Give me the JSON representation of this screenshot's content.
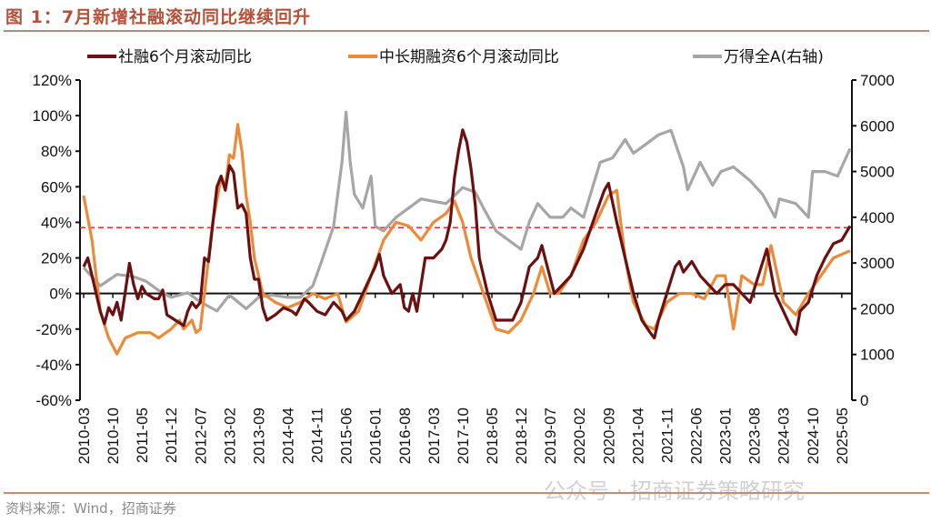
{
  "title": "图 1：7月新增社融滚动同比继续回升",
  "source": "资料来源：Wind，招商证券",
  "watermark": "公众号 · 招商证券策略研究",
  "chart_data": {
    "type": "line",
    "title": "",
    "xlabel": "",
    "ylabel": "",
    "y_left": {
      "min": -60,
      "max": 120,
      "step": 20,
      "ticks": [
        "-60%",
        "-40%",
        "-20%",
        "0%",
        "20%",
        "40%",
        "60%",
        "80%",
        "100%",
        "120%"
      ]
    },
    "y_right": {
      "min": 0,
      "max": 7000,
      "step": 1000,
      "ticks": [
        "0",
        "1000",
        "2000",
        "3000",
        "4000",
        "5000",
        "6000",
        "7000"
      ]
    },
    "x_range": [
      "2010-03",
      "2025-07"
    ],
    "x_ticks": [
      "2010-03",
      "2010-10",
      "2011-05",
      "2011-12",
      "2012-07",
      "2013-02",
      "2013-09",
      "2014-04",
      "2014-11",
      "2015-06",
      "2016-01",
      "2016-08",
      "2017-03",
      "2017-10",
      "2018-05",
      "2018-12",
      "2019-07",
      "2020-02",
      "2020-09",
      "2021-04",
      "2021-11",
      "2022-06",
      "2023-01",
      "2023-08",
      "2024-03",
      "2024-10",
      "2025-05"
    ],
    "reference_line": {
      "value": 37,
      "axis": "left",
      "color": "#e0302a",
      "style": "dashed"
    },
    "legend_position": "top",
    "grid": false,
    "series": [
      {
        "name": "社融6个月滚动同比",
        "axis": "left",
        "color": "#6b0f10",
        "points": [
          [
            "2010-03",
            15
          ],
          [
            "2010-04",
            20
          ],
          [
            "2010-05",
            10
          ],
          [
            "2010-07",
            -10
          ],
          [
            "2010-08",
            -17
          ],
          [
            "2010-09",
            -8
          ],
          [
            "2010-10",
            -12
          ],
          [
            "2010-11",
            -5
          ],
          [
            "2010-12",
            -15
          ],
          [
            "2011-02",
            17
          ],
          [
            "2011-03",
            5
          ],
          [
            "2011-04",
            -3
          ],
          [
            "2011-05",
            4
          ],
          [
            "2011-06",
            0
          ],
          [
            "2011-08",
            -3
          ],
          [
            "2011-09",
            -3
          ],
          [
            "2011-10",
            2
          ],
          [
            "2011-11",
            -12
          ],
          [
            "2012-01",
            -15
          ],
          [
            "2012-03",
            -18
          ],
          [
            "2012-04",
            -10
          ],
          [
            "2012-05",
            -5
          ],
          [
            "2012-06",
            -8
          ],
          [
            "2012-07",
            -5
          ],
          [
            "2012-08",
            20
          ],
          [
            "2012-09",
            18
          ],
          [
            "2012-11",
            60
          ],
          [
            "2012-12",
            66
          ],
          [
            "2013-01",
            58
          ],
          [
            "2013-02",
            72
          ],
          [
            "2013-03",
            68
          ],
          [
            "2013-04",
            48
          ],
          [
            "2013-05",
            50
          ],
          [
            "2013-06",
            45
          ],
          [
            "2013-07",
            20
          ],
          [
            "2013-08",
            8
          ],
          [
            "2013-09",
            8
          ],
          [
            "2013-10",
            -8
          ],
          [
            "2013-11",
            -15
          ],
          [
            "2014-01",
            -12
          ],
          [
            "2014-03",
            -8
          ],
          [
            "2014-05",
            -10
          ],
          [
            "2014-06",
            -12
          ],
          [
            "2014-08",
            -3
          ],
          [
            "2014-09",
            -5
          ],
          [
            "2014-11",
            -10
          ],
          [
            "2015-01",
            -12
          ],
          [
            "2015-03",
            -5
          ],
          [
            "2015-05",
            -10
          ],
          [
            "2015-06",
            -15
          ],
          [
            "2015-08",
            -10
          ],
          [
            "2015-10",
            0
          ],
          [
            "2015-11",
            5
          ],
          [
            "2016-01",
            15
          ],
          [
            "2016-02",
            22
          ],
          [
            "2016-03",
            10
          ],
          [
            "2016-05",
            0
          ],
          [
            "2016-07",
            5
          ],
          [
            "2016-08",
            -8
          ],
          [
            "2016-09",
            -10
          ],
          [
            "2016-10",
            0
          ],
          [
            "2016-11",
            -10
          ],
          [
            "2017-01",
            20
          ],
          [
            "2017-03",
            20
          ],
          [
            "2017-05",
            25
          ],
          [
            "2017-06",
            30
          ],
          [
            "2017-07",
            40
          ],
          [
            "2017-08",
            65
          ],
          [
            "2017-09",
            80
          ],
          [
            "2017-10",
            92
          ],
          [
            "2017-11",
            85
          ],
          [
            "2017-12",
            70
          ],
          [
            "2018-01",
            50
          ],
          [
            "2018-02",
            20
          ],
          [
            "2018-04",
            0
          ],
          [
            "2018-06",
            -15
          ],
          [
            "2018-08",
            -15
          ],
          [
            "2018-10",
            -15
          ],
          [
            "2018-12",
            -5
          ],
          [
            "2019-02",
            15
          ],
          [
            "2019-04",
            20
          ],
          [
            "2019-05",
            27
          ],
          [
            "2019-06",
            18
          ],
          [
            "2019-08",
            0
          ],
          [
            "2019-10",
            5
          ],
          [
            "2019-12",
            10
          ],
          [
            "2020-03",
            25
          ],
          [
            "2020-06",
            45
          ],
          [
            "2020-08",
            58
          ],
          [
            "2020-09",
            62
          ],
          [
            "2020-11",
            40
          ],
          [
            "2021-01",
            20
          ],
          [
            "2021-03",
            0
          ],
          [
            "2021-05",
            -15
          ],
          [
            "2021-07",
            -22
          ],
          [
            "2021-08",
            -25
          ],
          [
            "2021-09",
            -15
          ],
          [
            "2021-11",
            0
          ],
          [
            "2022-01",
            15
          ],
          [
            "2022-02",
            18
          ],
          [
            "2022-03",
            12
          ],
          [
            "2022-04",
            15
          ],
          [
            "2022-05",
            18
          ],
          [
            "2022-07",
            10
          ],
          [
            "2022-09",
            5
          ],
          [
            "2022-11",
            0
          ],
          [
            "2023-01",
            5
          ],
          [
            "2023-03",
            5
          ],
          [
            "2023-05",
            0
          ],
          [
            "2023-07",
            -5
          ],
          [
            "2023-09",
            10
          ],
          [
            "2023-11",
            25
          ],
          [
            "2024-01",
            0
          ],
          [
            "2024-03",
            -10
          ],
          [
            "2024-05",
            -20
          ],
          [
            "2024-06",
            -23
          ],
          [
            "2024-07",
            -10
          ],
          [
            "2024-09",
            -5
          ],
          [
            "2024-11",
            10
          ],
          [
            "2025-01",
            20
          ],
          [
            "2025-03",
            28
          ],
          [
            "2025-05",
            30
          ],
          [
            "2025-07",
            38
          ]
        ]
      },
      {
        "name": "中长期融资6个月滚动同比",
        "axis": "left",
        "color": "#ec8a3a",
        "points": [
          [
            "2010-03",
            55
          ],
          [
            "2010-05",
            30
          ],
          [
            "2010-07",
            -10
          ],
          [
            "2010-09",
            -25
          ],
          [
            "2010-11",
            -34
          ],
          [
            "2011-01",
            -25
          ],
          [
            "2011-04",
            -22
          ],
          [
            "2011-07",
            -22
          ],
          [
            "2011-09",
            -25
          ],
          [
            "2011-12",
            -20
          ],
          [
            "2012-02",
            -15
          ],
          [
            "2012-03",
            -20
          ],
          [
            "2012-05",
            -15
          ],
          [
            "2012-06",
            -22
          ],
          [
            "2012-07",
            -20
          ],
          [
            "2012-08",
            0
          ],
          [
            "2012-10",
            40
          ],
          [
            "2012-12",
            65
          ],
          [
            "2013-01",
            60
          ],
          [
            "2013-02",
            78
          ],
          [
            "2013-03",
            76
          ],
          [
            "2013-04",
            95
          ],
          [
            "2013-05",
            80
          ],
          [
            "2013-06",
            55
          ],
          [
            "2013-07",
            40
          ],
          [
            "2013-08",
            20
          ],
          [
            "2013-10",
            0
          ],
          [
            "2014-01",
            -5
          ],
          [
            "2014-04",
            -8
          ],
          [
            "2014-07",
            -5
          ],
          [
            "2014-10",
            0
          ],
          [
            "2015-01",
            -3
          ],
          [
            "2015-04",
            0
          ],
          [
            "2015-06",
            -16
          ],
          [
            "2015-09",
            -10
          ],
          [
            "2015-12",
            10
          ],
          [
            "2016-03",
            30
          ],
          [
            "2016-06",
            40
          ],
          [
            "2016-09",
            38
          ],
          [
            "2016-12",
            30
          ],
          [
            "2017-03",
            40
          ],
          [
            "2017-06",
            45
          ],
          [
            "2017-08",
            52
          ],
          [
            "2017-10",
            40
          ],
          [
            "2017-12",
            20
          ],
          [
            "2018-03",
            0
          ],
          [
            "2018-06",
            -20
          ],
          [
            "2018-09",
            -22
          ],
          [
            "2018-12",
            -15
          ],
          [
            "2019-03",
            0
          ],
          [
            "2019-05",
            15
          ],
          [
            "2019-07",
            0
          ],
          [
            "2019-09",
            0
          ],
          [
            "2019-12",
            10
          ],
          [
            "2020-03",
            30
          ],
          [
            "2020-06",
            40
          ],
          [
            "2020-09",
            55
          ],
          [
            "2020-11",
            58
          ],
          [
            "2021-01",
            20
          ],
          [
            "2021-03",
            -5
          ],
          [
            "2021-06",
            -18
          ],
          [
            "2021-08",
            -20
          ],
          [
            "2021-11",
            -5
          ],
          [
            "2022-02",
            0
          ],
          [
            "2022-05",
            0
          ],
          [
            "2022-08",
            -3
          ],
          [
            "2022-11",
            10
          ],
          [
            "2023-01",
            10
          ],
          [
            "2023-03",
            -20
          ],
          [
            "2023-05",
            10
          ],
          [
            "2023-08",
            5
          ],
          [
            "2023-10",
            5
          ],
          [
            "2023-12",
            27
          ],
          [
            "2024-03",
            -5
          ],
          [
            "2024-06",
            -12
          ],
          [
            "2024-09",
            0
          ],
          [
            "2024-12",
            10
          ],
          [
            "2025-03",
            20
          ],
          [
            "2025-07",
            24
          ]
        ]
      },
      {
        "name": "万得全A(右轴)",
        "axis": "right",
        "color": "#a6a6a6",
        "points": [
          [
            "2010-03",
            2900
          ],
          [
            "2010-07",
            2500
          ],
          [
            "2010-11",
            2750
          ],
          [
            "2011-03",
            2700
          ],
          [
            "2011-06",
            2600
          ],
          [
            "2011-09",
            2400
          ],
          [
            "2011-12",
            2250
          ],
          [
            "2012-04",
            2350
          ],
          [
            "2012-07",
            2150
          ],
          [
            "2012-11",
            1950
          ],
          [
            "2013-02",
            2300
          ],
          [
            "2013-06",
            2000
          ],
          [
            "2013-09",
            2250
          ],
          [
            "2013-12",
            2300
          ],
          [
            "2014-04",
            2250
          ],
          [
            "2014-07",
            2250
          ],
          [
            "2014-10",
            2500
          ],
          [
            "2014-12",
            3000
          ],
          [
            "2015-03",
            3800
          ],
          [
            "2015-05",
            5200
          ],
          [
            "2015-06",
            6300
          ],
          [
            "2015-07",
            5200
          ],
          [
            "2015-08",
            4500
          ],
          [
            "2015-10",
            4200
          ],
          [
            "2015-12",
            4900
          ],
          [
            "2016-01",
            3800
          ],
          [
            "2016-03",
            3700
          ],
          [
            "2016-06",
            4000
          ],
          [
            "2016-09",
            4200
          ],
          [
            "2016-12",
            4400
          ],
          [
            "2017-03",
            4350
          ],
          [
            "2017-06",
            4300
          ],
          [
            "2017-10",
            4650
          ],
          [
            "2018-01",
            4550
          ],
          [
            "2018-03",
            4200
          ],
          [
            "2018-06",
            3700
          ],
          [
            "2018-09",
            3500
          ],
          [
            "2018-12",
            3300
          ],
          [
            "2019-02",
            3900
          ],
          [
            "2019-04",
            4300
          ],
          [
            "2019-07",
            4000
          ],
          [
            "2019-10",
            4000
          ],
          [
            "2019-12",
            4200
          ],
          [
            "2020-03",
            4000
          ],
          [
            "2020-07",
            5200
          ],
          [
            "2020-10",
            5300
          ],
          [
            "2021-01",
            5700
          ],
          [
            "2021-03",
            5400
          ],
          [
            "2021-06",
            5600
          ],
          [
            "2021-09",
            5800
          ],
          [
            "2021-12",
            5900
          ],
          [
            "2022-03",
            5100
          ],
          [
            "2022-04",
            4600
          ],
          [
            "2022-07",
            5200
          ],
          [
            "2022-10",
            4700
          ],
          [
            "2022-12",
            5000
          ],
          [
            "2023-03",
            5100
          ],
          [
            "2023-07",
            4800
          ],
          [
            "2023-10",
            4500
          ],
          [
            "2024-01",
            4000
          ],
          [
            "2024-02",
            4400
          ],
          [
            "2024-06",
            4300
          ],
          [
            "2024-09",
            4000
          ],
          [
            "2024-10",
            5000
          ],
          [
            "2025-01",
            5000
          ],
          [
            "2025-04",
            4900
          ],
          [
            "2025-07",
            5500
          ]
        ]
      }
    ]
  }
}
